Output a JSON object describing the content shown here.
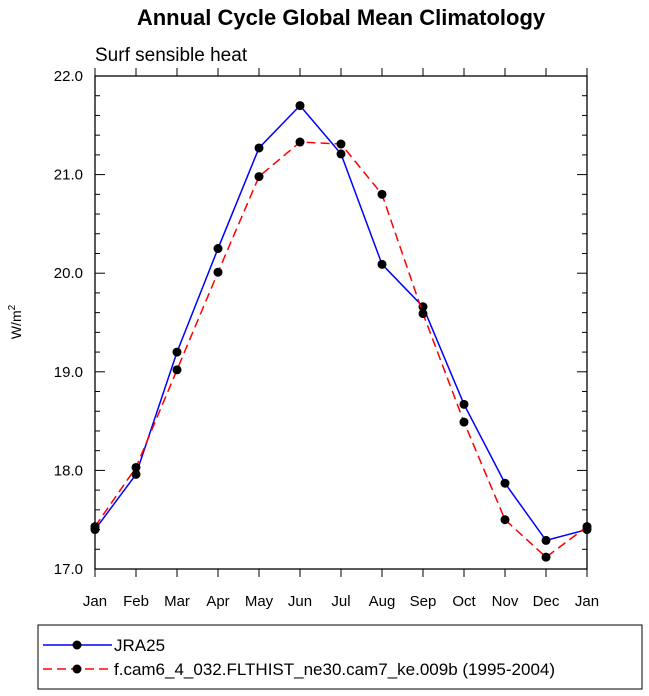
{
  "chart_data": {
    "type": "line",
    "title": "Annual Cycle Global Mean Climatology",
    "subtitle": "Surf sensible heat",
    "ylabel": "W/m",
    "ylabel_superscript": "2",
    "xlabel": "",
    "categories": [
      "Jan",
      "Feb",
      "Mar",
      "Apr",
      "May",
      "Jun",
      "Jul",
      "Aug",
      "Sep",
      "Oct",
      "Nov",
      "Dec",
      "Jan"
    ],
    "ylim": [
      17.0,
      22.0
    ],
    "yticks": [
      "17.0",
      "18.0",
      "19.0",
      "20.0",
      "21.0",
      "22.0"
    ],
    "grid": false,
    "legend_position": "bottom",
    "series": [
      {
        "name": "JRA25",
        "color": "#0000ff",
        "dash": "solid",
        "values": [
          17.4,
          17.96,
          19.2,
          20.25,
          21.27,
          21.7,
          21.21,
          20.09,
          19.66,
          18.67,
          17.87,
          17.29,
          17.4
        ]
      },
      {
        "name": "f.cam6_4_032.FLTHIST_ne30.cam7_ke.009b (1995-2004)",
        "color": "#ff0000",
        "dash": "dashed",
        "values": [
          17.43,
          18.03,
          19.02,
          20.01,
          20.98,
          21.33,
          21.31,
          20.8,
          19.59,
          18.49,
          17.5,
          17.12,
          17.43
        ]
      }
    ]
  }
}
